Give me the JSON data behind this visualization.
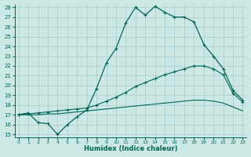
{
  "xlabel": "Humidex (Indice chaleur)",
  "bg_color": "#cce8e4",
  "grid_color": "#aaccca",
  "line_color": "#006655",
  "xlim": [
    0,
    23
  ],
  "ylim": [
    15,
    28
  ],
  "yticks": [
    15,
    16,
    17,
    18,
    19,
    20,
    21,
    22,
    23,
    24,
    25,
    26,
    27,
    28
  ],
  "xticks": [
    0,
    1,
    2,
    3,
    4,
    5,
    6,
    7,
    8,
    9,
    10,
    11,
    12,
    13,
    14,
    15,
    16,
    17,
    18,
    19,
    20,
    21,
    22,
    23
  ],
  "hours": [
    0,
    1,
    2,
    3,
    4,
    5,
    6,
    7,
    8,
    9,
    10,
    11,
    12,
    13,
    14,
    15,
    16,
    17,
    18,
    19,
    20,
    21,
    22,
    23
  ],
  "line_main": [
    17.0,
    17.2,
    16.2,
    16.1,
    15.0,
    16.0,
    16.8,
    17.5,
    19.7,
    22.3,
    23.8,
    26.4,
    28.0,
    27.2,
    28.1,
    27.5,
    27.0,
    27.0,
    26.5,
    24.2,
    23.0,
    21.7,
    19.5,
    18.5
  ],
  "line_upper": [
    17.0,
    17.1,
    17.2,
    17.3,
    17.4,
    17.5,
    17.6,
    17.7,
    18.0,
    18.4,
    18.8,
    19.3,
    19.9,
    20.3,
    20.7,
    21.1,
    21.4,
    21.7,
    22.0,
    22.0,
    21.7,
    21.1,
    19.2,
    18.3
  ],
  "line_lower": [
    17.0,
    17.0,
    17.0,
    17.1,
    17.1,
    17.2,
    17.3,
    17.4,
    17.5,
    17.6,
    17.7,
    17.8,
    17.9,
    18.0,
    18.1,
    18.2,
    18.3,
    18.4,
    18.5,
    18.5,
    18.4,
    18.2,
    17.8,
    17.4
  ]
}
